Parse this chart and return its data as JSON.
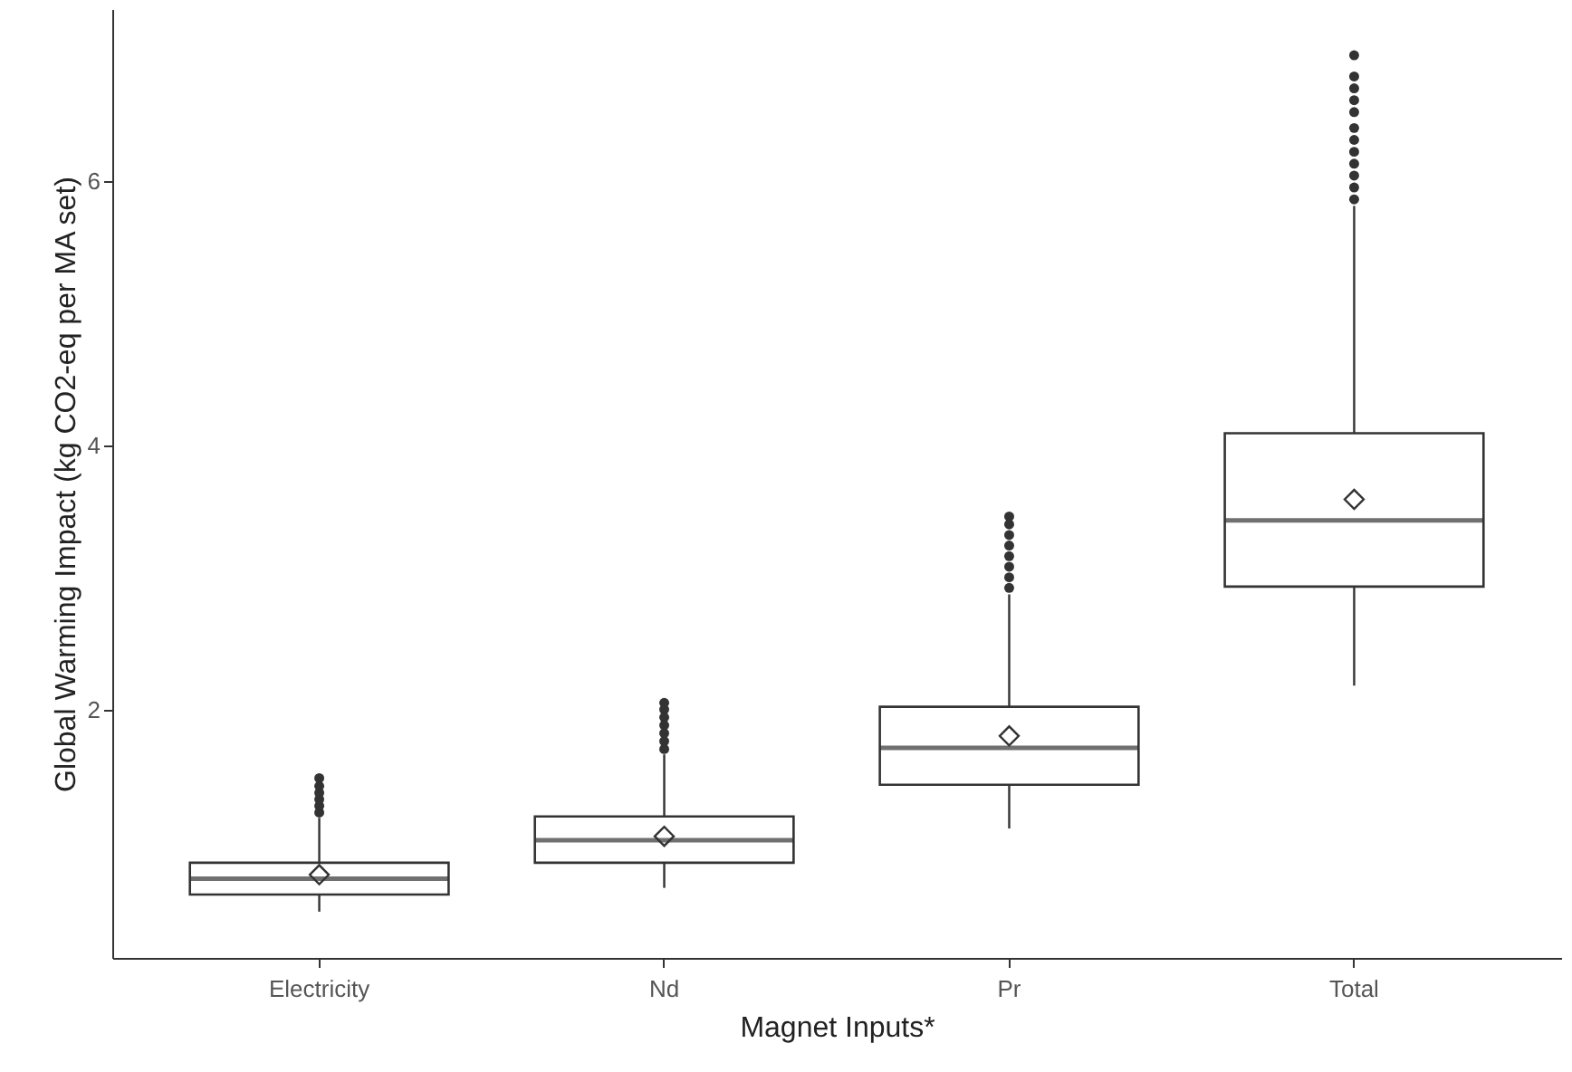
{
  "chart_data": {
    "type": "box",
    "xlabel": "Magnet Inputs*",
    "ylabel": "Global Warming Impact (kg CO2-eq per MA set)",
    "categories": [
      "Electricity",
      "Nd",
      "Pr",
      "Total"
    ],
    "boxes": [
      {
        "low": 0.47,
        "q1": 0.6,
        "median": 0.72,
        "q3": 0.84,
        "high": 1.18,
        "mean": 0.75,
        "outliers": [
          1.22,
          1.27,
          1.32,
          1.37,
          1.42,
          1.48
        ]
      },
      {
        "low": 0.65,
        "q1": 0.84,
        "median": 1.01,
        "q3": 1.19,
        "high": 1.66,
        "mean": 1.04,
        "outliers": [
          1.7,
          1.76,
          1.82,
          1.88,
          1.94,
          2.0,
          2.05
        ]
      },
      {
        "low": 1.1,
        "q1": 1.43,
        "median": 1.71,
        "q3": 2.02,
        "high": 2.87,
        "mean": 1.8,
        "outliers": [
          2.92,
          3.0,
          3.08,
          3.16,
          3.24,
          3.32,
          3.4,
          3.46
        ]
      },
      {
        "low": 2.18,
        "q1": 2.93,
        "median": 3.43,
        "q3": 4.09,
        "high": 5.81,
        "mean": 3.59,
        "outliers": [
          5.86,
          5.95,
          6.04,
          6.13,
          6.22,
          6.31,
          6.4,
          6.52,
          6.61,
          6.7,
          6.79,
          6.95
        ]
      }
    ],
    "ylim": [
      0.12,
      7.3
    ],
    "yticks": [
      2,
      4,
      6
    ],
    "marker": "diamond"
  }
}
